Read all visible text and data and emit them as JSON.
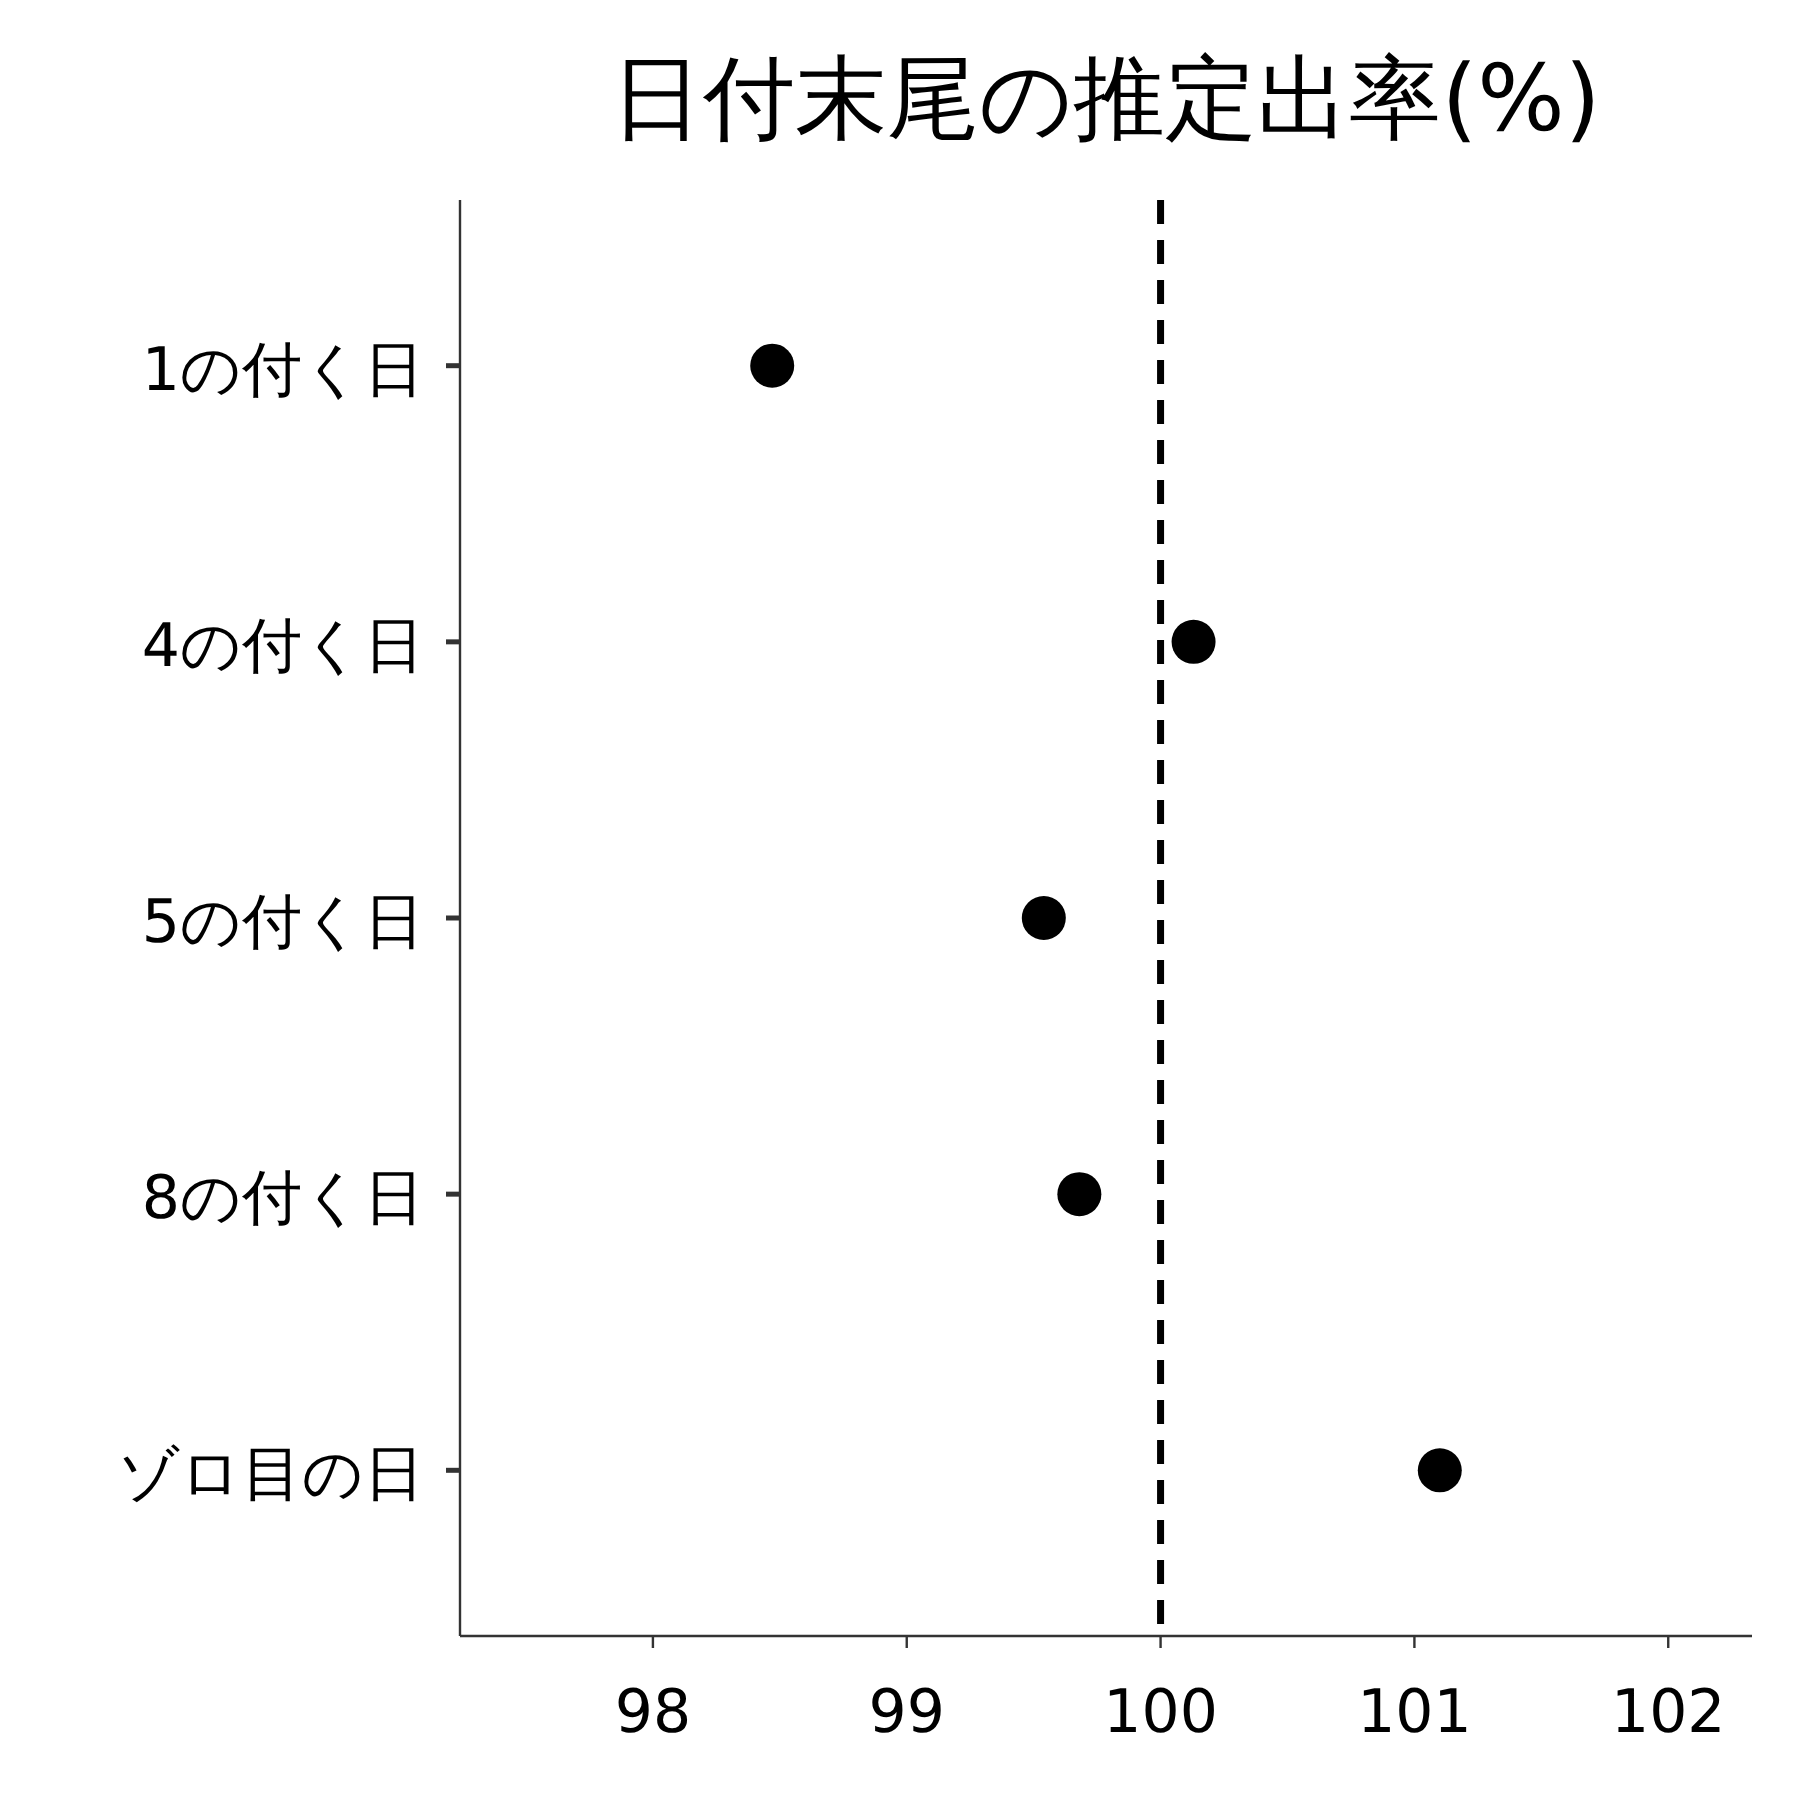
{
  "chart_data": {
    "type": "scatter",
    "title": "日付末尾の推定出率(%)",
    "orientation": "horizontal",
    "categories": [
      "1の付く日",
      "4の付く日",
      "5の付く日",
      "8の付く日",
      "ゾロ目の日"
    ],
    "values": [
      98.47,
      100.13,
      99.54,
      99.68,
      101.1
    ],
    "color": "#000000",
    "marker": "circle",
    "grid": false,
    "xlim": [
      97.24,
      102.33
    ],
    "xticks": [
      98,
      99,
      100,
      101,
      102
    ],
    "ref_lines": [
      {
        "axis": "x",
        "value": 100,
        "color": "#000000",
        "line_style": "dashed"
      }
    ]
  }
}
